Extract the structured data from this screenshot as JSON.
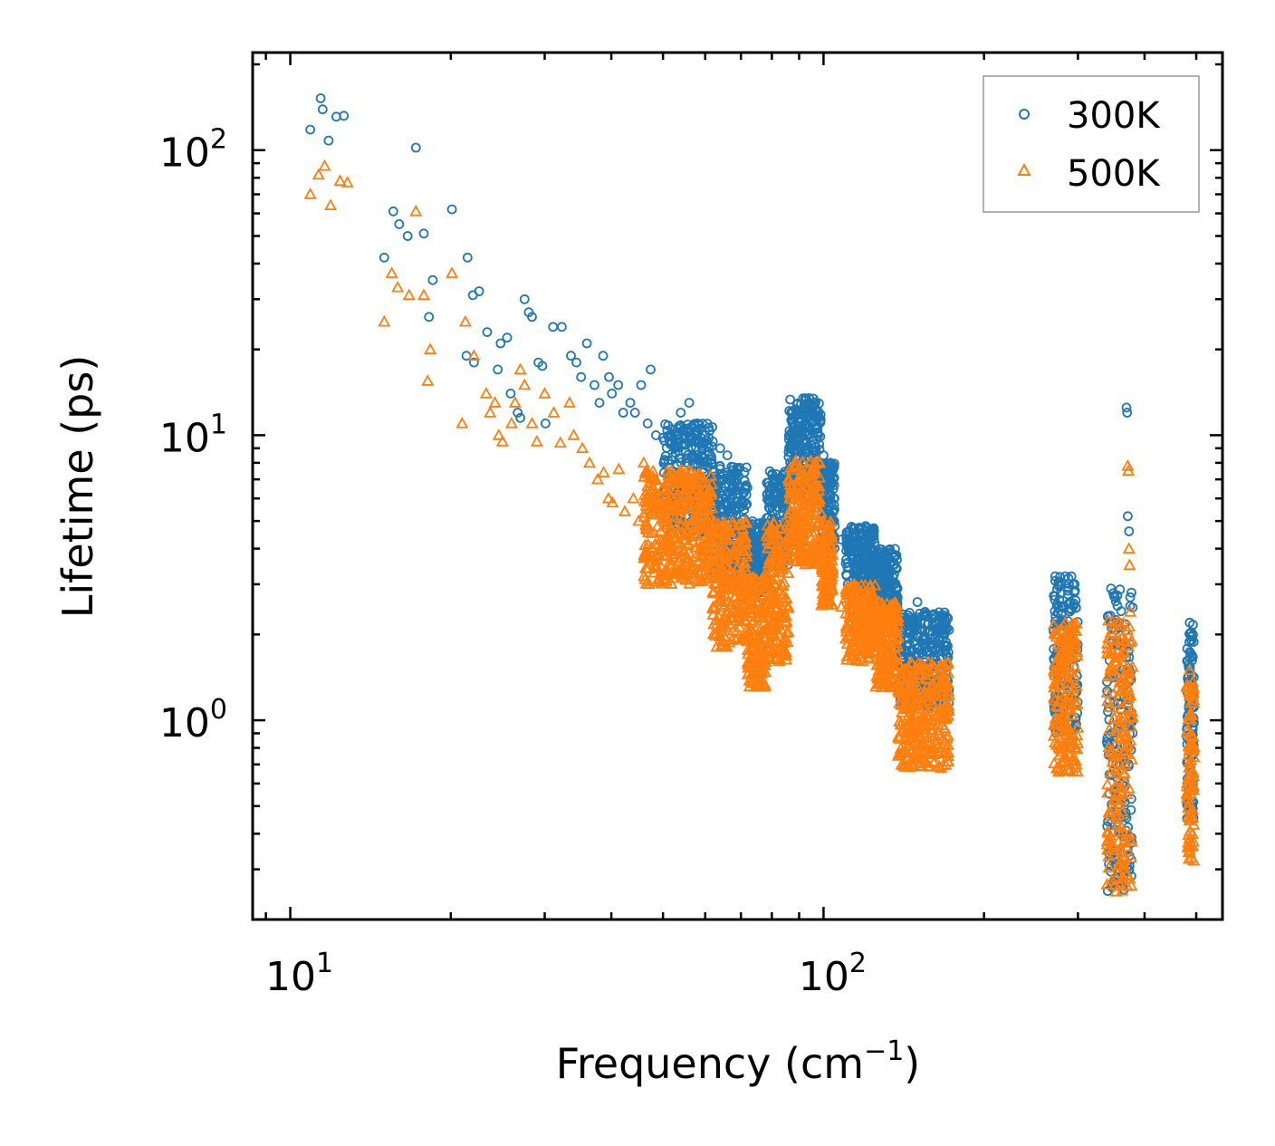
{
  "chart_data": {
    "type": "scatter",
    "title": "",
    "xlabel": "Frequency (cm",
    "xlabel_sup": "−1",
    "xlabel_end": ")",
    "ylabel": "Lifetime (ps)",
    "xscale": "log",
    "yscale": "log",
    "xlim": [
      8.5,
      560
    ],
    "ylim": [
      0.2,
      220
    ],
    "x_ticks": [
      {
        "value": 10,
        "base": "10",
        "exp": "1"
      },
      {
        "value": 100,
        "base": "10",
        "exp": "2"
      }
    ],
    "y_ticks": [
      {
        "value": 1,
        "base": "10",
        "exp": "0"
      },
      {
        "value": 10,
        "base": "10",
        "exp": "1"
      },
      {
        "value": 100,
        "base": "10",
        "exp": "2"
      }
    ],
    "legend_position": "top-right",
    "series": [
      {
        "name": "300K",
        "marker": "circle",
        "color": "#1f77b4",
        "points": [
          [
            10.9,
            118
          ],
          [
            11.4,
            152
          ],
          [
            11.5,
            139
          ],
          [
            11.8,
            108
          ],
          [
            12.2,
            131
          ],
          [
            12.6,
            132
          ],
          [
            15.6,
            61
          ],
          [
            16.0,
            55
          ],
          [
            16.6,
            50
          ],
          [
            17.2,
            102
          ],
          [
            17.8,
            51
          ],
          [
            15.0,
            42
          ],
          [
            18.5,
            35
          ],
          [
            18.2,
            26
          ],
          [
            20.1,
            62
          ],
          [
            21.5,
            42
          ],
          [
            22.0,
            31
          ],
          [
            22.6,
            32
          ],
          [
            21.4,
            19
          ],
          [
            22.1,
            18
          ],
          [
            23.4,
            23
          ],
          [
            24.5,
            17
          ],
          [
            24.8,
            21
          ],
          [
            25.5,
            22
          ],
          [
            25.9,
            14
          ],
          [
            26.7,
            12
          ],
          [
            27.0,
            11.5
          ],
          [
            27.5,
            30
          ],
          [
            28.0,
            27
          ],
          [
            28.4,
            26
          ],
          [
            29.2,
            18
          ],
          [
            29.7,
            17.5
          ],
          [
            30.1,
            11
          ],
          [
            31.1,
            24
          ],
          [
            32.3,
            24
          ],
          [
            33.6,
            19
          ],
          [
            34.4,
            18
          ],
          [
            35.1,
            16
          ],
          [
            36.0,
            21
          ],
          [
            37.2,
            15
          ],
          [
            38.0,
            13
          ],
          [
            38.6,
            19
          ],
          [
            39.6,
            16
          ],
          [
            40.1,
            14
          ],
          [
            41.2,
            15
          ],
          [
            42.1,
            12
          ],
          [
            43.4,
            13
          ],
          [
            44.3,
            12
          ],
          [
            45.5,
            15
          ],
          [
            46.8,
            11
          ],
          [
            47.4,
            17
          ],
          [
            48.5,
            10
          ],
          [
            50.0,
            9.8
          ],
          [
            52.0,
            10.5
          ],
          [
            54.0,
            12
          ],
          [
            56.0,
            13
          ],
          [
            58.0,
            11
          ],
          [
            60.0,
            10
          ],
          [
            62.0,
            9.5
          ],
          [
            64.0,
            9.0
          ],
          [
            66.0,
            8.5
          ],
          [
            68.0,
            7.0
          ],
          [
            70.0,
            5.8
          ],
          [
            72.0,
            4.8
          ],
          [
            74.0,
            3.8
          ],
          [
            76.0,
            3.0
          ],
          [
            78.0,
            3.6
          ],
          [
            80.0,
            4.6
          ],
          [
            82.0,
            5.6
          ],
          [
            84.0,
            7.0
          ],
          [
            86.0,
            8.4
          ],
          [
            88.0,
            10.0
          ],
          [
            90.0,
            11.5
          ],
          [
            92.0,
            12.8
          ],
          [
            94.0,
            13.5
          ],
          [
            96.0,
            13.0
          ],
          [
            98.0,
            11.5
          ],
          [
            100.0,
            8.5
          ],
          [
            102.0,
            6.0
          ],
          [
            105.0,
            4.8
          ],
          [
            108.0,
            4.3
          ],
          [
            112.0,
            4.0
          ],
          [
            116.0,
            3.6
          ],
          [
            120.0,
            4.8
          ],
          [
            124.0,
            4.5
          ],
          [
            128.0,
            3.6
          ],
          [
            132.0,
            3.4
          ],
          [
            135.0,
            2.6
          ],
          [
            140.0,
            2.3
          ],
          [
            145.0,
            2.2
          ],
          [
            150.0,
            2.6
          ],
          [
            155.0,
            2.4
          ],
          [
            160.0,
            2.0
          ],
          [
            165.0,
            2.1
          ],
          [
            170.0,
            2.3
          ],
          [
            272.0,
            3.2
          ],
          [
            278.0,
            3.0
          ],
          [
            284.0,
            3.2
          ],
          [
            290.0,
            2.6
          ],
          [
            296.0,
            1.8
          ],
          [
            346.0,
            2.9
          ],
          [
            352.0,
            2.7
          ],
          [
            358.0,
            2.2
          ],
          [
            364.0,
            1.8
          ],
          [
            370.0,
            12.5
          ],
          [
            371.0,
            12.0
          ],
          [
            372.0,
            5.2
          ],
          [
            374.0,
            4.6
          ],
          [
            376.0,
            2.7
          ],
          [
            486.0,
            2.2
          ],
          [
            490.0,
            1.9
          ],
          [
            492.0,
            1.2
          ]
        ],
        "bands": [
          [
            50,
            62,
            4.5,
            11
          ],
          [
            62,
            72,
            3.2,
            8
          ],
          [
            72,
            78,
            2.8,
            5
          ],
          [
            78,
            86,
            3.5,
            7.5
          ],
          [
            86,
            99,
            6,
            13.5
          ],
          [
            99,
            105,
            4,
            8
          ],
          [
            110,
            125,
            2.8,
            4.8
          ],
          [
            125,
            138,
            2.2,
            4
          ],
          [
            138,
            172,
            1.1,
            2.4
          ],
          [
            270,
            300,
            0.9,
            3.2
          ],
          [
            340,
            380,
            0.25,
            2.9
          ],
          [
            480,
            495,
            0.45,
            2.2
          ]
        ]
      },
      {
        "name": "500K",
        "marker": "triangle",
        "color": "#ff7f0e",
        "points": [
          [
            10.9,
            70
          ],
          [
            11.3,
            82
          ],
          [
            11.6,
            88
          ],
          [
            11.9,
            64
          ],
          [
            12.4,
            78
          ],
          [
            12.8,
            77
          ],
          [
            15.0,
            25
          ],
          [
            15.5,
            37
          ],
          [
            15.9,
            33
          ],
          [
            16.7,
            31
          ],
          [
            17.2,
            61
          ],
          [
            17.8,
            31
          ],
          [
            18.3,
            20
          ],
          [
            18.1,
            15.5
          ],
          [
            20.1,
            37
          ],
          [
            21.3,
            25
          ],
          [
            21.0,
            11
          ],
          [
            22.1,
            19
          ],
          [
            23.3,
            14
          ],
          [
            23.7,
            12
          ],
          [
            24.2,
            13
          ],
          [
            24.6,
            10
          ],
          [
            25.0,
            9.5
          ],
          [
            26.0,
            11
          ],
          [
            26.4,
            13
          ],
          [
            27.0,
            17
          ],
          [
            27.5,
            15
          ],
          [
            28.4,
            11
          ],
          [
            29.0,
            9.5
          ],
          [
            30.0,
            14
          ],
          [
            31.2,
            12
          ],
          [
            32.1,
            9.4
          ],
          [
            33.4,
            13
          ],
          [
            34.0,
            10
          ],
          [
            35.3,
            9.0
          ],
          [
            36.4,
            8.0
          ],
          [
            37.7,
            7.0
          ],
          [
            38.7,
            7.4
          ],
          [
            39.5,
            6.0
          ],
          [
            40.2,
            5.8
          ],
          [
            41.3,
            7.6
          ],
          [
            42.4,
            5.4
          ],
          [
            44.0,
            6.0
          ],
          [
            45.0,
            5.0
          ],
          [
            46.0,
            8.0
          ],
          [
            48.0,
            7.0
          ],
          [
            50.0,
            5.5
          ],
          [
            52.0,
            6.0
          ],
          [
            54.0,
            7.3
          ],
          [
            56.0,
            7.5
          ],
          [
            58.0,
            6.0
          ],
          [
            60.0,
            5.0
          ],
          [
            62.0,
            4.5
          ],
          [
            64.0,
            3.8
          ],
          [
            66.0,
            3.2
          ],
          [
            68.0,
            2.7
          ],
          [
            70.0,
            2.4
          ],
          [
            72.0,
            2.0
          ],
          [
            74.0,
            1.6
          ],
          [
            76.0,
            1.4
          ],
          [
            78.0,
            1.6
          ],
          [
            80.0,
            2.0
          ],
          [
            82.0,
            2.6
          ],
          [
            84.0,
            3.4
          ],
          [
            86.0,
            4.3
          ],
          [
            88.0,
            5.2
          ],
          [
            90.0,
            6.1
          ],
          [
            92.0,
            7.2
          ],
          [
            94.0,
            8.0
          ],
          [
            96.0,
            7.6
          ],
          [
            98.0,
            6.4
          ],
          [
            100.0,
            5.0
          ],
          [
            104.0,
            3.8
          ],
          [
            108.0,
            2.5
          ],
          [
            112.0,
            2.3
          ],
          [
            116.0,
            2.2
          ],
          [
            120.0,
            2.7
          ],
          [
            124.0,
            2.4
          ],
          [
            128.0,
            2.0
          ],
          [
            132.0,
            1.6
          ],
          [
            135.0,
            1.4
          ],
          [
            140.0,
            1.2
          ],
          [
            145.0,
            1.0
          ],
          [
            150.0,
            1.4
          ],
          [
            155.0,
            1.5
          ],
          [
            160.0,
            1.3
          ],
          [
            165.0,
            1.1
          ],
          [
            170.0,
            1.5
          ],
          [
            272.0,
            2.0
          ],
          [
            278.0,
            1.7
          ],
          [
            284.0,
            1.5
          ],
          [
            290.0,
            1.2
          ],
          [
            296.0,
            0.8
          ],
          [
            350.0,
            1.5
          ],
          [
            356.0,
            1.3
          ],
          [
            362.0,
            1.1
          ],
          [
            366.0,
            0.9
          ],
          [
            372.0,
            7.8
          ],
          [
            373.0,
            7.5
          ],
          [
            374.0,
            4.0
          ],
          [
            375.0,
            3.5
          ],
          [
            376.0,
            2.4
          ],
          [
            486.0,
            1.5
          ],
          [
            490.0,
            1.3
          ],
          [
            492.0,
            0.8
          ]
        ],
        "bands": [
          [
            46,
            62,
            3.0,
            7.5
          ],
          [
            62,
            72,
            1.8,
            5
          ],
          [
            72,
            78,
            1.3,
            3.2
          ],
          [
            78,
            86,
            1.6,
            5
          ],
          [
            86,
            99,
            3.5,
            8.2
          ],
          [
            99,
            104,
            2.5,
            5
          ],
          [
            110,
            125,
            1.6,
            3
          ],
          [
            125,
            138,
            1.3,
            2.6
          ],
          [
            138,
            172,
            0.68,
            1.6
          ],
          [
            270,
            300,
            0.65,
            2.2
          ],
          [
            340,
            380,
            0.25,
            2.3
          ],
          [
            480,
            495,
            0.32,
            1.5
          ]
        ]
      }
    ]
  }
}
